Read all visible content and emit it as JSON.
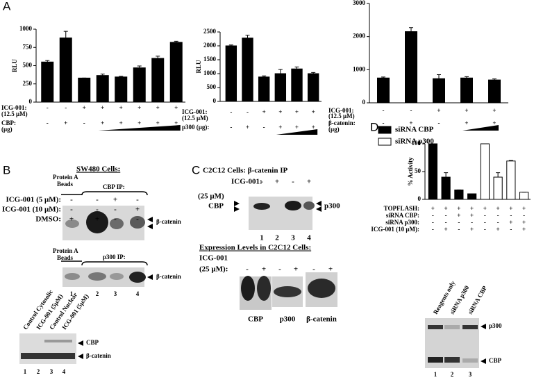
{
  "panel_labels": [
    "A",
    "B",
    "C",
    "D"
  ],
  "chart_data": [
    {
      "type": "bar",
      "ylabel": "RLU",
      "values": [
        550,
        880,
        330,
        365,
        345,
        470,
        600,
        820
      ],
      "errors": [
        20,
        90,
        0,
        20,
        10,
        25,
        30,
        15
      ],
      "color": "#000000",
      "ylim": [
        0,
        1000
      ],
      "yticks": [
        0,
        250,
        500,
        750,
        1000
      ],
      "conditions": [
        {
          "label": "ICG-001:",
          "sublabel": "(12.5 μM)",
          "values": [
            "-",
            "-",
            "+",
            "+",
            "+",
            "+",
            "+",
            "+"
          ]
        },
        {
          "label": "CBP:",
          "sublabel": "(μg)",
          "values": [
            "-",
            "+",
            "-",
            "+",
            "+",
            "+",
            "+",
            "+"
          ]
        }
      ]
    },
    {
      "type": "bar",
      "ylabel": "RLU",
      "values": [
        2000,
        2280,
        880,
        1000,
        1170,
        1000
      ],
      "errors": [
        30,
        100,
        40,
        150,
        70,
        40
      ],
      "color": "#000000",
      "ylim": [
        0,
        2500
      ],
      "yticks": [
        0,
        500,
        1000,
        1500,
        2000,
        2500
      ],
      "conditions": [
        {
          "label": "ICG-001:",
          "sublabel": "(12.5 μM)",
          "values": [
            "-",
            "-",
            "+",
            "+",
            "+",
            "+"
          ]
        },
        {
          "label": "p300 (μg):",
          "values": [
            "-",
            "+",
            "-",
            "+",
            "+",
            "+"
          ]
        }
      ]
    },
    {
      "type": "bar",
      "values": [
        750,
        2150,
        730,
        750,
        690
      ],
      "errors": [
        30,
        120,
        120,
        40,
        30
      ],
      "color": "#000000",
      "ylim": [
        0,
        3000
      ],
      "yticks": [
        0,
        1000,
        2000,
        3000
      ],
      "conditions": [
        {
          "label": "ICG-001:",
          "sublabel": "(12.5 μM)",
          "values": [
            "-",
            "-",
            "+",
            "+",
            "+"
          ]
        },
        {
          "label": "β-catenin:",
          "sublabel": "(μg)",
          "values": [
            "-",
            "+",
            "-",
            "+",
            "+"
          ]
        }
      ]
    },
    {
      "type": "bar",
      "ylabel": "% Activity",
      "legend": "top-left",
      "ylim": [
        0,
        100
      ],
      "yticks": [
        0,
        50,
        100
      ],
      "series": [
        {
          "name": "siRNA CBP",
          "color": "#000000",
          "values": [
            100,
            40,
            17,
            10,
            null,
            null,
            null,
            null
          ],
          "errors": [
            0,
            8,
            0,
            0,
            null,
            null,
            null,
            null
          ]
        },
        {
          "name": "siRNA p300",
          "color": "#ffffff",
          "values": [
            null,
            null,
            null,
            null,
            100,
            40,
            69,
            13
          ],
          "errors": [
            null,
            null,
            null,
            null,
            0,
            8,
            1,
            0
          ]
        }
      ],
      "conditions": [
        {
          "label": "TOPFLASH:",
          "values": [
            "+",
            "+",
            "+",
            "+",
            "+",
            "+",
            "+",
            "+"
          ]
        },
        {
          "label": "siRNA CBP:",
          "values": [
            "-",
            "-",
            "+",
            "+",
            "-",
            "-",
            "-",
            "-"
          ]
        },
        {
          "label": "siRNA p300:",
          "values": [
            "-",
            "-",
            "-",
            "-",
            "-",
            "-",
            "+",
            "+"
          ]
        },
        {
          "label": "ICG-001 (10 μM):",
          "values": [
            "-",
            "+",
            "-",
            "+",
            "-",
            "+",
            "-",
            "+"
          ]
        }
      ]
    }
  ],
  "blot_b": {
    "title": "SW480 Cells:",
    "beads": "Protein A",
    "beads_sub": "Beads",
    "cbp_ip": "CBP IP:",
    "rows": [
      {
        "label": "ICG-001 (5 μM):",
        "values": [
          "-",
          "-",
          "+",
          "-"
        ]
      },
      {
        "label": "ICG-001 (10 μM):",
        "values": [
          "-",
          "-",
          "-",
          "+"
        ]
      },
      {
        "label": "DMSO:",
        "values": [
          "+",
          "+",
          "-",
          "-"
        ]
      }
    ],
    "band_top": "β-catenin",
    "beads2": "Protein A",
    "beads2_sub": "Beads",
    "p300_ip": "p300 IP:",
    "band_bottom": "β-catenin",
    "lanes": [
      "1",
      "2",
      "3",
      "4"
    ]
  },
  "blot_b_fraction": {
    "lane_labels": [
      "Control Cytosolic",
      "ICG-001 (5μM)",
      "Control Nuclear",
      "ICG-001 (5μM)"
    ],
    "band_top": "CBP",
    "band_bottom": "β-catenin",
    "lanes": [
      "1",
      "2",
      "3",
      "4"
    ]
  },
  "blot_c": {
    "title": "C2C12 Cells:  β-catenin IP",
    "row_label": "ICG-001:",
    "row_sublabel": "(25 μM)",
    "values": [
      "-",
      "+",
      "-",
      "+"
    ],
    "band_left": "CBP",
    "band_right": "p300",
    "lanes": [
      "1",
      "2",
      "3",
      "4"
    ]
  },
  "blot_c_expression": {
    "title": "Expression Levels in C2C12 Cells:",
    "row_label": "ICG-001",
    "row_sublabel": "(25 μM):",
    "values": [
      "-",
      "+",
      "-",
      "+",
      "-",
      "+"
    ],
    "panels": [
      "CBP",
      "p300",
      "β-catenin"
    ]
  },
  "blot_d": {
    "lane_labels": [
      "Reagents only",
      "siRNA p300",
      "siRNA CBP"
    ],
    "band_top": "p300",
    "band_bottom": "CBP",
    "lanes": [
      "1",
      "2",
      "3"
    ]
  }
}
